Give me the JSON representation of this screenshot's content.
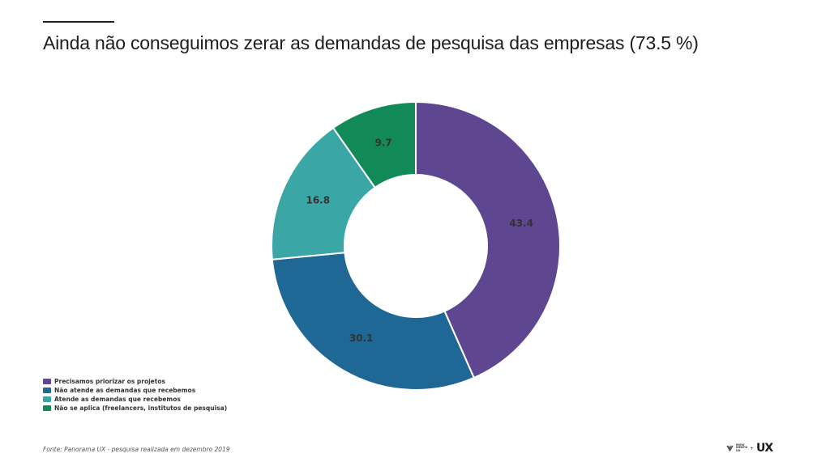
{
  "title": "Ainda não conseguimos zerar as demandas de pesquisa das empresas (73.5 %)",
  "source": "Fonte: Panorama UX - pesquisa realizada em dezembro 2019",
  "logo": {
    "small_text": "MOVI MENTO UX",
    "plus": "+",
    "ux": "UX"
  },
  "chart_data": {
    "type": "pie",
    "style": "donut",
    "title": "Ainda não conseguimos zerar as demandas de pesquisa das empresas (73.5 %)",
    "legend_position": "bottom-left",
    "slices": [
      {
        "label": "Precisamos priorizar os projetos",
        "value": 43.4,
        "color": "#5e4690"
      },
      {
        "label": "Não atende as demandas que recebemos",
        "value": 30.1,
        "color": "#1f6794"
      },
      {
        "label": "Atende as demandas que recebemos",
        "value": 16.8,
        "color": "#3ba6a6"
      },
      {
        "label": "Não se aplica (freelancers, institutos de pesquisa)",
        "value": 9.7,
        "color": "#118a57"
      }
    ]
  }
}
